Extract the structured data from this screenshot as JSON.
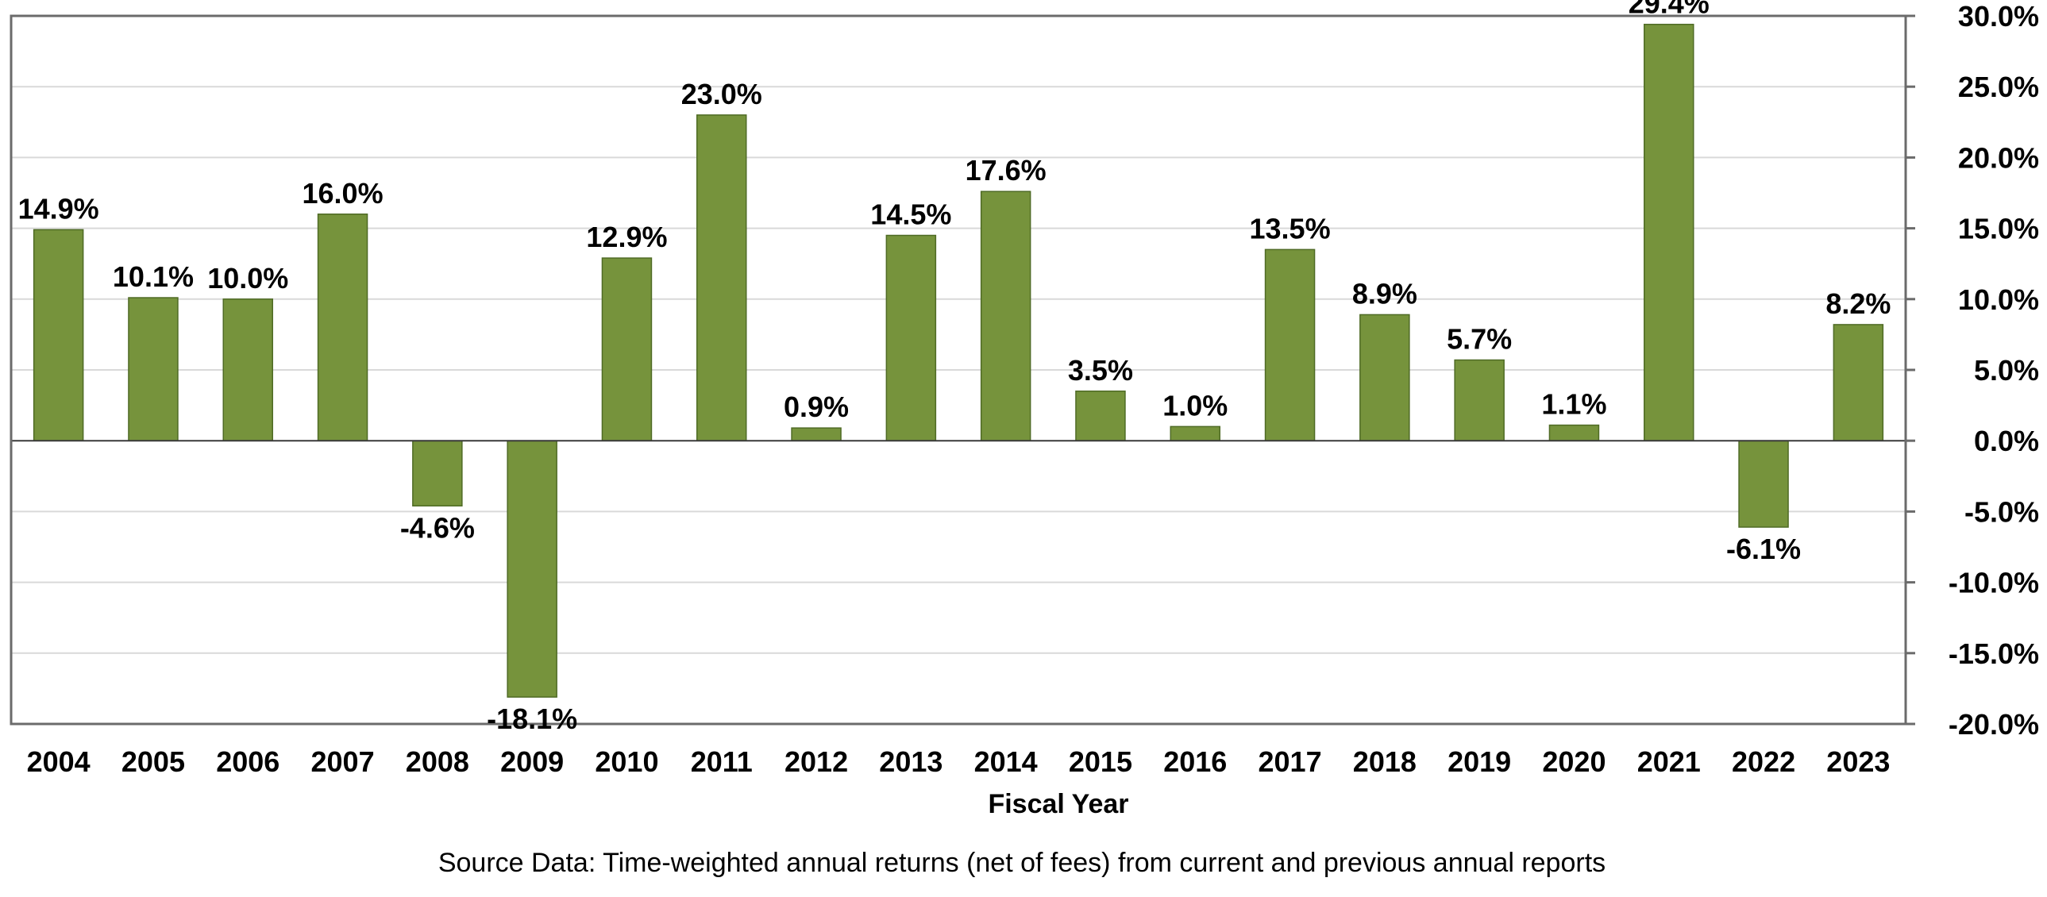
{
  "chart_data": {
    "type": "bar",
    "title": "",
    "xlabel": "Fiscal Year",
    "ylabel": "",
    "ylim": [
      -20,
      30
    ],
    "y_axis_position": "right",
    "y_ticks": [
      30,
      25,
      20,
      15,
      10,
      5,
      0,
      -5,
      -10,
      -15,
      -20
    ],
    "y_tick_labels": [
      "30.0%",
      "25.0%",
      "20.0%",
      "15.0%",
      "10.0%",
      "5.0%",
      "0.0%",
      "-5.0%",
      "-10.0%",
      "-15.0%",
      "-20.0%"
    ],
    "grid": true,
    "legend": "none",
    "bar_color": "#76933c",
    "categories": [
      "2004",
      "2005",
      "2006",
      "2007",
      "2008",
      "2009",
      "2010",
      "2011",
      "2012",
      "2013",
      "2014",
      "2015",
      "2016",
      "2017",
      "2018",
      "2019",
      "2020",
      "2021",
      "2022",
      "2023"
    ],
    "values": [
      14.9,
      10.1,
      10.0,
      16.0,
      -4.6,
      -18.1,
      12.9,
      23.0,
      0.9,
      14.5,
      17.6,
      3.5,
      1.0,
      13.5,
      8.9,
      5.7,
      1.1,
      29.4,
      -6.1,
      8.2
    ],
    "data_labels": [
      "14.9%",
      "10.1%",
      "10.0%",
      "16.0%",
      "-4.6%",
      "-18.1%",
      "12.9%",
      "23.0%",
      "0.9%",
      "14.5%",
      "17.6%",
      "3.5%",
      "1.0%",
      "13.5%",
      "8.9%",
      "5.7%",
      "1.1%",
      "29.4%",
      "-6.1%",
      "8.2%"
    ]
  },
  "source_note": "Source Data: Time-weighted annual returns (net of fees) from current and previous annual reports"
}
